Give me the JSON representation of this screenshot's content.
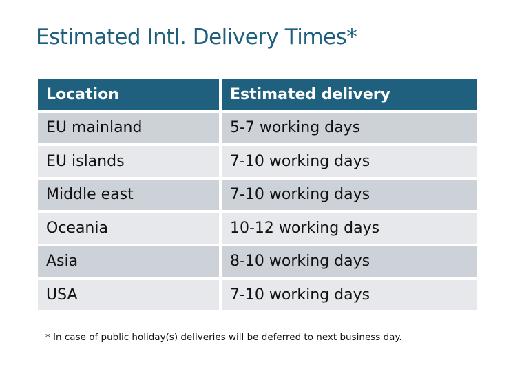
{
  "title": "Estimated Intl. Delivery Times*",
  "table": {
    "headers": [
      "Location",
      "Estimated delivery"
    ],
    "rows": [
      [
        "EU mainland",
        "5-7 working days"
      ],
      [
        "EU islands",
        "7-10 working days"
      ],
      [
        "Middle east",
        "7-10 working days"
      ],
      [
        "Oceania",
        "10-12 working days"
      ],
      [
        "Asia",
        "8-10 working days"
      ],
      [
        "USA",
        "7-10 working days"
      ]
    ]
  },
  "footnote": "* In case of public holiday(s) deliveries will be deferred to next business day.",
  "colors": {
    "header": "#1f607f",
    "title": "#1f5f7e",
    "row_odd": "#cdd1d8",
    "row_even": "#e6e8eb"
  }
}
